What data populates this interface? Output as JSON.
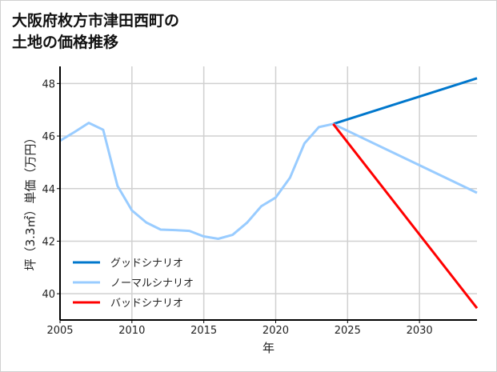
{
  "chart_data": {
    "type": "line",
    "title": [
      "大阪府枚方市津田西町の",
      "土地の価格推移"
    ],
    "xlabel": "年",
    "ylabel": "坪（3.3㎡）単価（万円）",
    "xlim": [
      2005,
      2034
    ],
    "ylim": [
      39.0,
      48.65
    ],
    "xticks": [
      2005,
      2010,
      2015,
      2020,
      2025,
      2030
    ],
    "yticks": [
      40,
      42,
      44,
      46,
      48
    ],
    "grid": true,
    "legend_position": "lower-left",
    "series": [
      {
        "name": "グッドシナリオ",
        "color": "#0077cc",
        "x": [
          2024,
          2034
        ],
        "y": [
          46.46,
          48.2
        ]
      },
      {
        "name": "ノーマルシナリオ",
        "color": "#99ccff",
        "x": [
          2005,
          2006,
          2007,
          2008,
          2009,
          2010,
          2011,
          2012,
          2013,
          2014,
          2015,
          2016,
          2017,
          2018,
          2019,
          2020,
          2021,
          2022,
          2023,
          2024,
          2034
        ],
        "y": [
          45.82,
          46.15,
          46.5,
          46.24,
          44.1,
          43.17,
          42.71,
          42.44,
          42.42,
          42.39,
          42.18,
          42.09,
          42.24,
          42.7,
          43.33,
          43.66,
          44.42,
          45.72,
          46.34,
          46.46,
          43.84
        ]
      },
      {
        "name": "バッドシナリオ",
        "color": "#ff0000",
        "x": [
          2024,
          2034
        ],
        "y": [
          46.46,
          39.45
        ]
      }
    ]
  }
}
